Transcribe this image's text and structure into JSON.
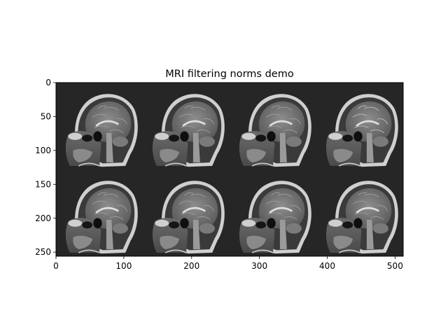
{
  "chart_data": {
    "type": "image",
    "title": "MRI filtering norms demo",
    "xlabel": "",
    "ylabel": "",
    "xlim": [
      0,
      512
    ],
    "ylim": [
      256,
      0
    ],
    "xticks": [
      0,
      100,
      200,
      300,
      400,
      500
    ],
    "yticks": [
      0,
      50,
      100,
      150,
      200,
      250
    ],
    "grid": false,
    "image_grid": {
      "rows": 2,
      "cols": 4,
      "tile_width": 128,
      "tile_height": 128
    },
    "colormap": "gray",
    "panels": [
      {
        "row": 0,
        "col": 0
      },
      {
        "row": 0,
        "col": 1
      },
      {
        "row": 0,
        "col": 2
      },
      {
        "row": 0,
        "col": 3
      },
      {
        "row": 1,
        "col": 0
      },
      {
        "row": 1,
        "col": 1
      },
      {
        "row": 1,
        "col": 2
      },
      {
        "row": 1,
        "col": 3
      }
    ]
  }
}
